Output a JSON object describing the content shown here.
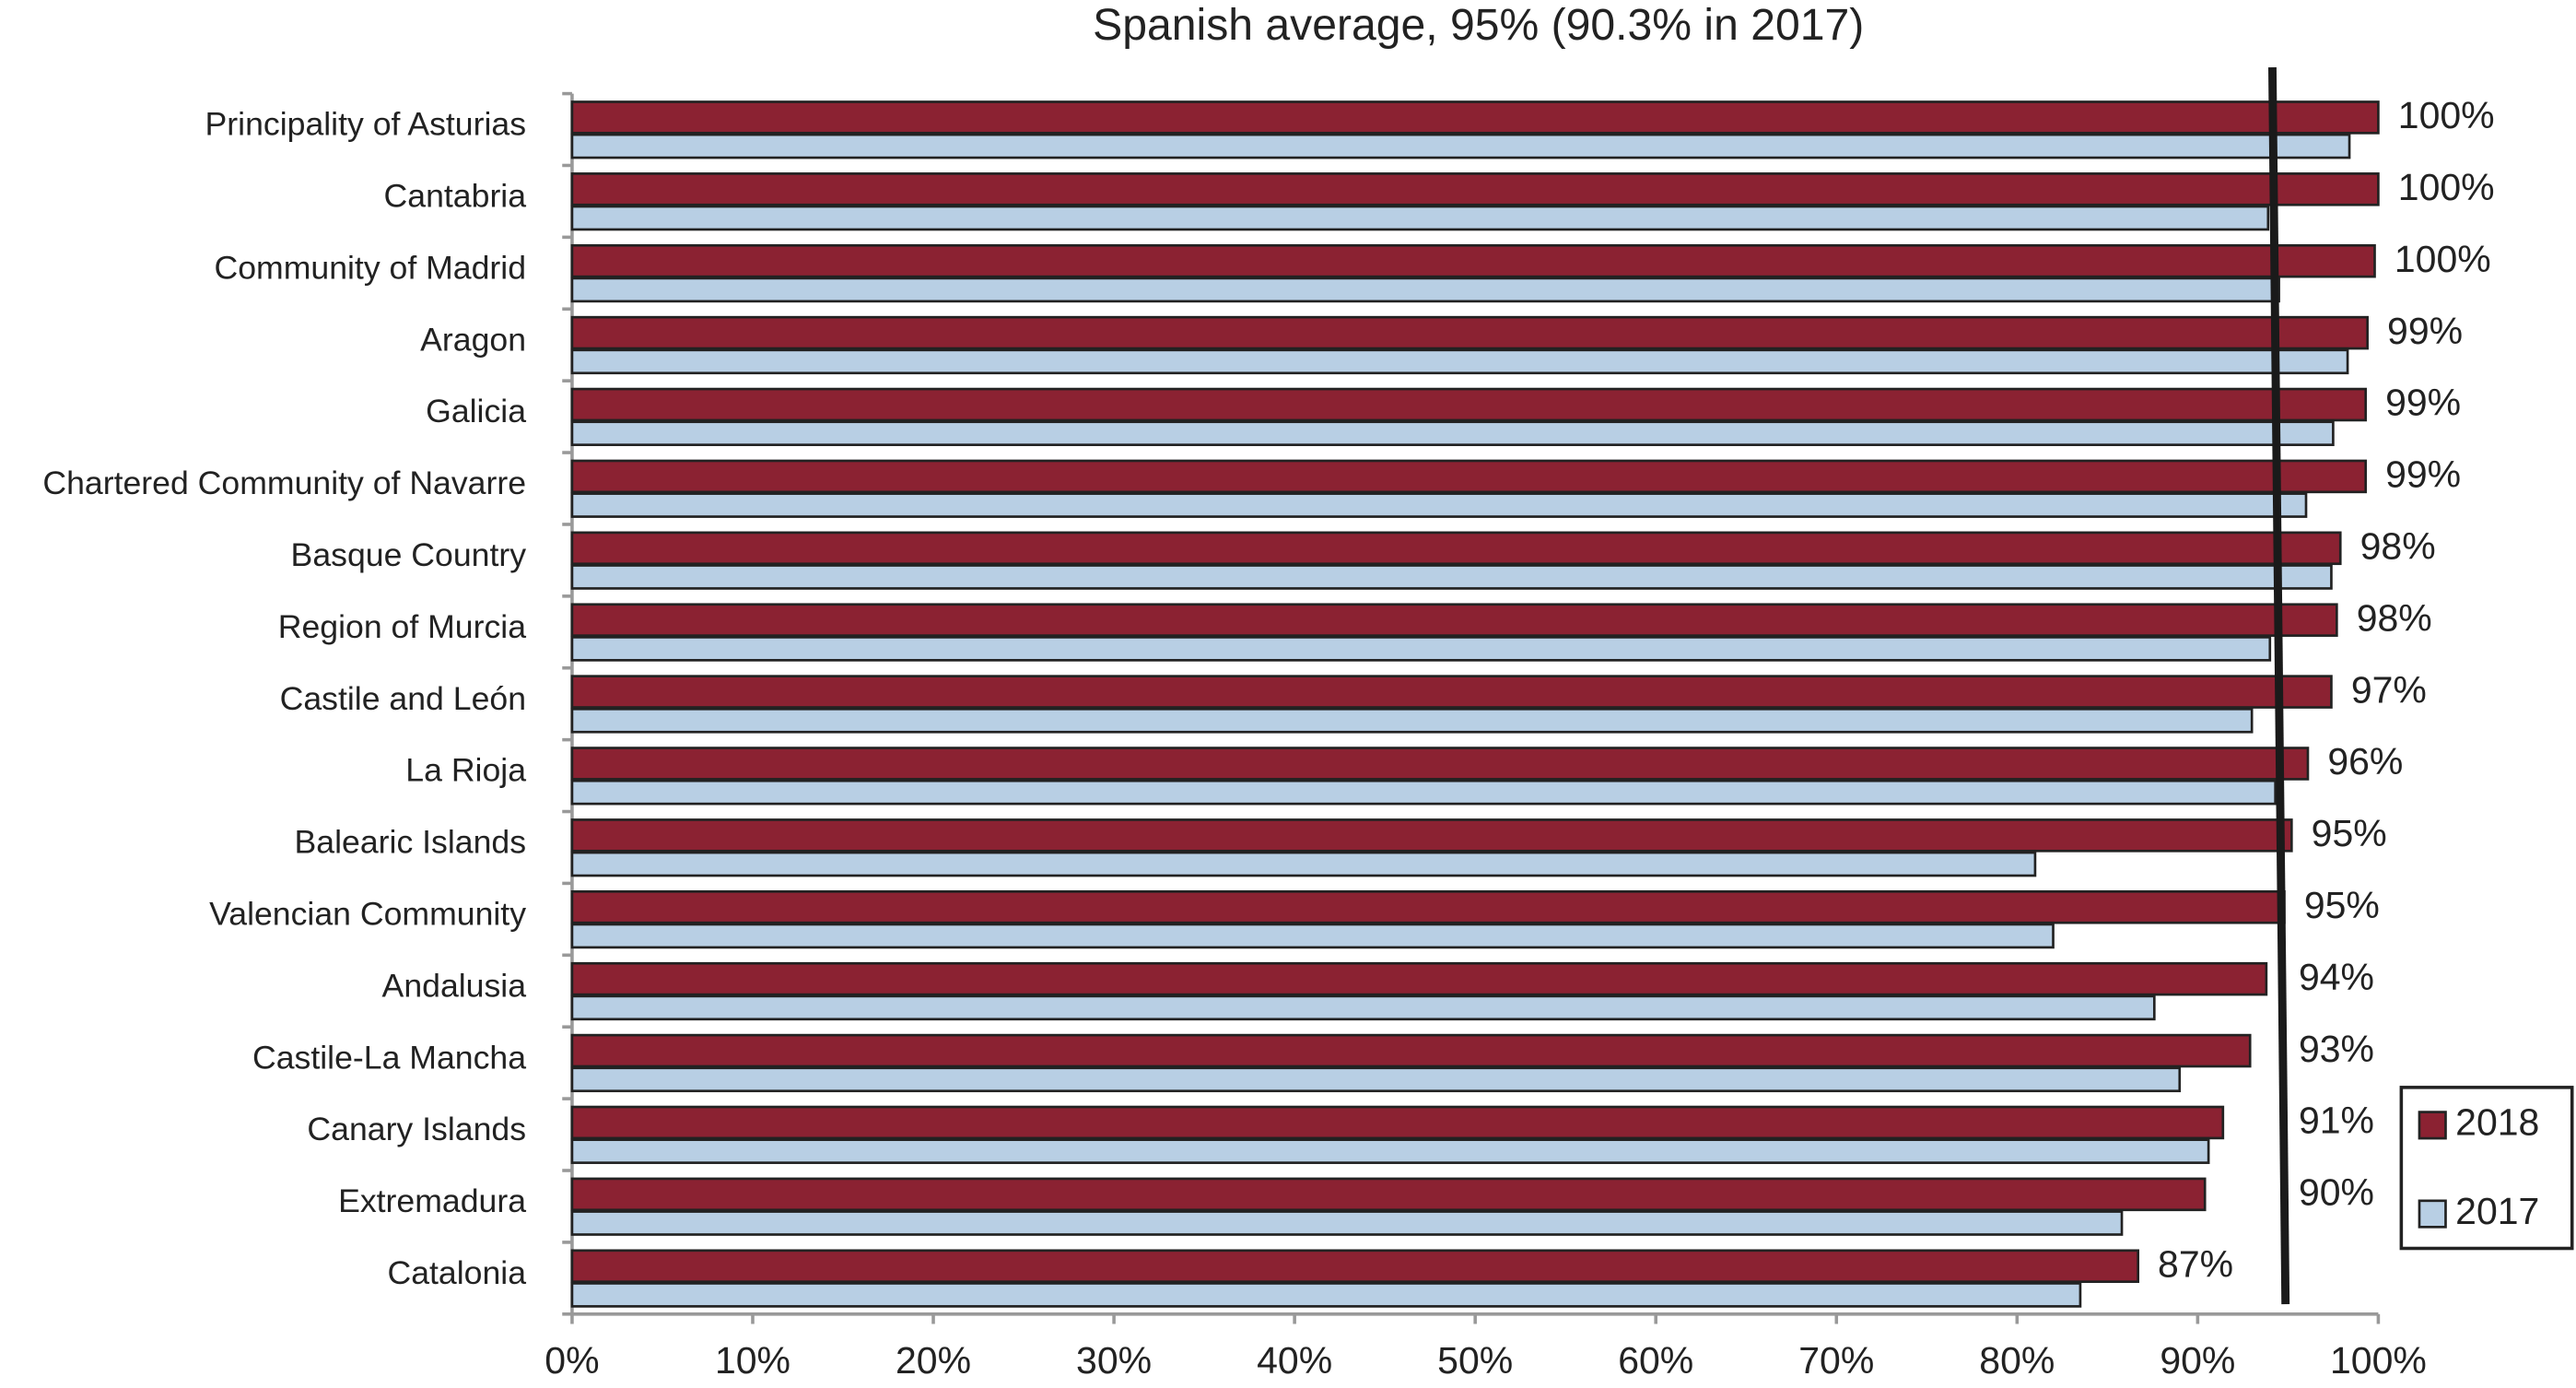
{
  "chart_data": {
    "type": "bar",
    "orientation": "horizontal",
    "title": "Spanish average, 95% (90.3% in 2017)",
    "categories": [
      "Principality of Asturias",
      "Cantabria",
      "Community of Madrid",
      "Aragon",
      "Galicia",
      "Chartered Community of Navarre",
      "Basque Country",
      "Region of Murcia",
      "Castile and León",
      "La Rioja",
      "Balearic Islands",
      "Valencian Community",
      "Andalusia",
      "Castile-La Mancha",
      "Canary Islands",
      "Extremadura",
      "Catalonia"
    ],
    "series": [
      {
        "name": "2018",
        "color": "#8b2232",
        "values": [
          100,
          100,
          99.8,
          99.4,
          99.3,
          99.3,
          97.9,
          97.7,
          97.4,
          96.1,
          95.2,
          94.8,
          93.8,
          92.9,
          91.4,
          90.4,
          86.7
        ],
        "value_labels": [
          "100%",
          "100%",
          "100%",
          "99%",
          "99%",
          "99%",
          "98%",
          "98%",
          "97%",
          "96%",
          "95%",
          "95%",
          "94%",
          "93%",
          "91%",
          "90%",
          "87%"
        ]
      },
      {
        "name": "2017",
        "color": "#b8cfe4",
        "values": [
          98.4,
          93.9,
          94.5,
          98.3,
          97.5,
          96.0,
          97.4,
          94.0,
          93.0,
          94.3,
          81.0,
          82.0,
          87.6,
          89.0,
          90.6,
          85.8,
          83.5
        ]
      }
    ],
    "average_line": 94.5,
    "xlim": [
      0,
      100
    ],
    "xticks": [
      {
        "value": 0,
        "label": "0%"
      },
      {
        "value": 10,
        "label": "10%"
      },
      {
        "value": 20,
        "label": "20%"
      },
      {
        "value": 30,
        "label": "30%"
      },
      {
        "value": 40,
        "label": "40%"
      },
      {
        "value": 50,
        "label": "50%"
      },
      {
        "value": 60,
        "label": "60%"
      },
      {
        "value": 70,
        "label": "70%"
      },
      {
        "value": 80,
        "label": "80%"
      },
      {
        "value": 90,
        "label": "90%"
      },
      {
        "value": 100,
        "label": "100%"
      }
    ],
    "legend": "bottom-right",
    "grid": false
  }
}
